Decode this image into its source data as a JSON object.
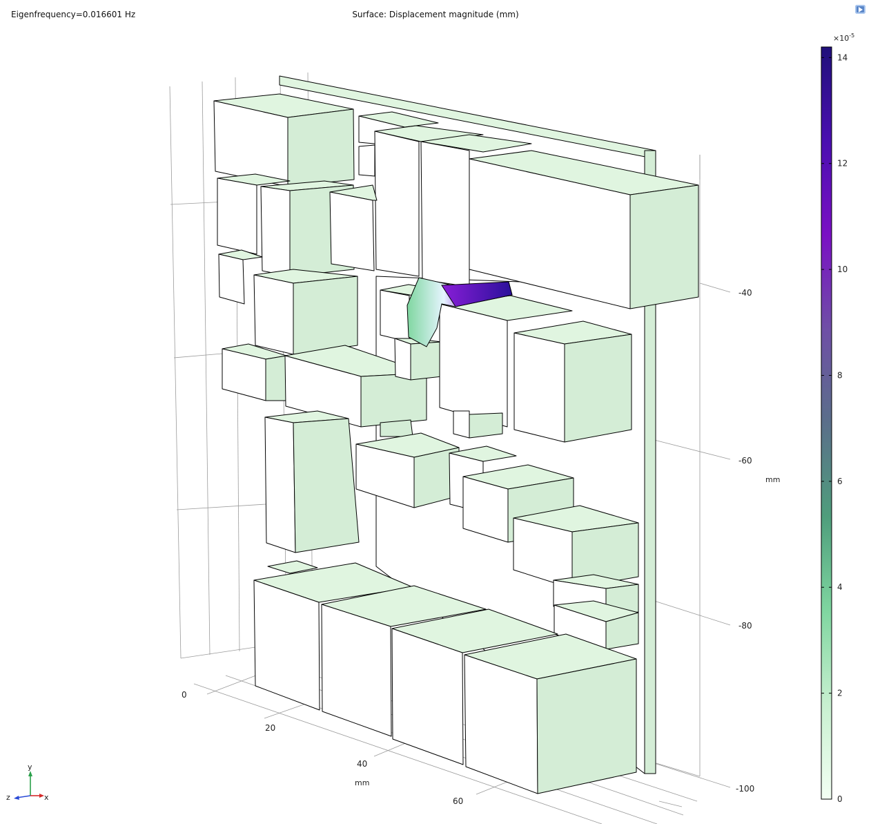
{
  "header": {
    "eigenfrequency_label": "Eigenfrequency=0.016601 Hz",
    "plot_title": "Surface: Displacement magnitude (mm)"
  },
  "x_axis": {
    "ticks": [
      "0",
      "20",
      "40",
      "60"
    ],
    "unit": "mm"
  },
  "y_axis": {
    "ticks": [
      "-40",
      "-60",
      "-80",
      "-100"
    ],
    "unit": "mm"
  },
  "colorbar": {
    "multiplier_base": "×10",
    "multiplier_exp": "-5",
    "ticks": [
      "14",
      "12",
      "10",
      "8",
      "6",
      "4",
      "2",
      "0"
    ],
    "min": 0,
    "max": 14.2,
    "colors": [
      "#f3fff3",
      "#c8f0d0",
      "#7fd6a0",
      "#4f9e7c",
      "#5a6f8a",
      "#6f4fa6",
      "#7a10c4",
      "#4a0fb0",
      "#20107a"
    ]
  },
  "triad": {
    "x": "x",
    "y": "y",
    "z": "z"
  },
  "colors": {
    "face_front": "#ffffff",
    "face_top": "#e0f5e0",
    "face_side": "#d4edd6",
    "edge": "#000000",
    "grid": "#999999"
  }
}
